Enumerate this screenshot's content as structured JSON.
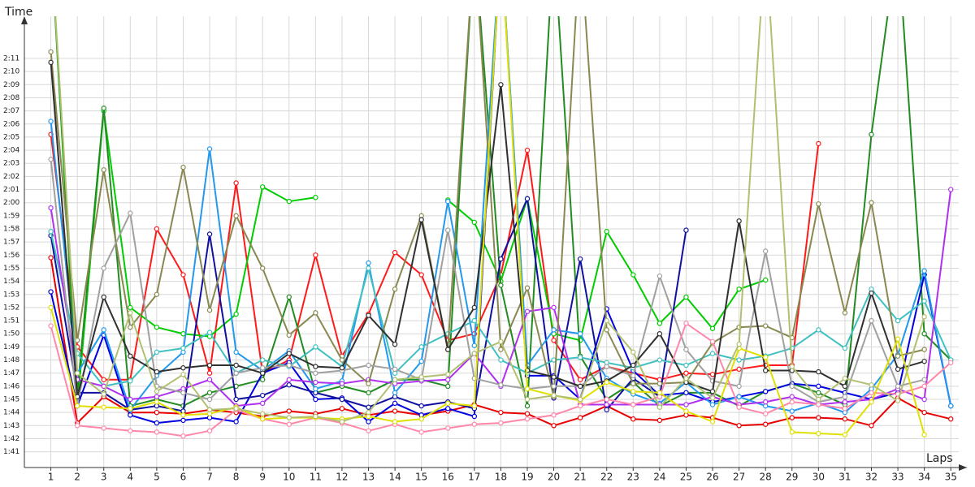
{
  "chart_data": {
    "type": "line",
    "y_label": "Time",
    "x_label": "Laps",
    "x": [
      1,
      2,
      3,
      4,
      5,
      6,
      7,
      8,
      9,
      10,
      11,
      12,
      13,
      14,
      15,
      16,
      17,
      18,
      19,
      20,
      21,
      22,
      23,
      24,
      25,
      26,
      27,
      28,
      29,
      30,
      31,
      32,
      33,
      34,
      35
    ],
    "xlim": [
      0,
      35.3
    ],
    "xticks": [
      1,
      2,
      3,
      4,
      5,
      6,
      7,
      8,
      9,
      10,
      11,
      12,
      13,
      14,
      15,
      16,
      17,
      18,
      19,
      20,
      21,
      22,
      23,
      24,
      25,
      26,
      27,
      28,
      29,
      30,
      31,
      32,
      33,
      34,
      35
    ],
    "ylim": [
      99.8,
      133.6
    ],
    "yticks": [
      {
        "value": 101,
        "label": "1:41"
      },
      {
        "value": 102,
        "label": "1:42"
      },
      {
        "value": 103,
        "label": "1:43"
      },
      {
        "value": 104,
        "label": "1:44"
      },
      {
        "value": 105,
        "label": "1:45"
      },
      {
        "value": 106,
        "label": "1:46"
      },
      {
        "value": 107,
        "label": "1:47"
      },
      {
        "value": 108,
        "label": "1:48"
      },
      {
        "value": 109,
        "label": "1:49"
      },
      {
        "value": 110,
        "label": "1:50"
      },
      {
        "value": 111,
        "label": "1:51"
      },
      {
        "value": 112,
        "label": "1:52"
      },
      {
        "value": 113,
        "label": "1:53"
      },
      {
        "value": 114,
        "label": "1:54"
      },
      {
        "value": 115,
        "label": "1:55"
      },
      {
        "value": 116,
        "label": "1:56"
      },
      {
        "value": 117,
        "label": "1:57"
      },
      {
        "value": 118,
        "label": "1:58"
      },
      {
        "value": 119,
        "label": "1:59"
      },
      {
        "value": 120,
        "label": "2:00"
      },
      {
        "value": 121,
        "label": "2:01"
      },
      {
        "value": 122,
        "label": "2:02"
      },
      {
        "value": 123,
        "label": "2:03"
      },
      {
        "value": 124,
        "label": "2:04"
      },
      {
        "value": 125,
        "label": "2:05"
      },
      {
        "value": 126,
        "label": "2:06"
      },
      {
        "value": 127,
        "label": "2:07"
      },
      {
        "value": 128,
        "label": "2:08"
      },
      {
        "value": 129,
        "label": "2:09"
      },
      {
        "value": 130,
        "label": "2:10"
      },
      {
        "value": 131,
        "label": "2:11"
      }
    ],
    "grid": true,
    "series": [
      {
        "color": "#e80000",
        "values": [
          115.8,
          103.2,
          105.2,
          104,
          104,
          103.9,
          104.2,
          104,
          103.7,
          104.1,
          103.9,
          104.3,
          103.8,
          104.1,
          103.8,
          104.1,
          104.6,
          104,
          103.9,
          103,
          103.6,
          104.5,
          103.5,
          103.4,
          103.8,
          103.6,
          103,
          103.1,
          103.6,
          103.6,
          103.5,
          103,
          105.1,
          104,
          103.5
        ]
      },
      {
        "color": "#ff1a1a",
        "values": [
          125.2,
          109,
          106.5,
          106.5,
          118,
          114.5,
          107,
          121.5,
          107,
          108,
          116,
          108.3,
          111.5,
          116.2,
          114.5,
          109.5,
          110,
          114.5,
          124,
          109.5,
          106.5,
          107.5,
          107,
          106.5,
          107,
          106.9,
          107.3,
          107.6,
          107.6,
          124.5,
          null,
          null,
          null,
          null,
          null
        ]
      },
      {
        "color": "#00cc00",
        "values": [
          140,
          104.5,
          127,
          112,
          110.5,
          110,
          109.8,
          111.5,
          121.2,
          120.1,
          120.4,
          null,
          null,
          null,
          null,
          120.2,
          118.5,
          114,
          120.3,
          110,
          109.5,
          117.8,
          114.5,
          110.8,
          112.8,
          110.4,
          113.4,
          114.1,
          null,
          null,
          null,
          null,
          null,
          null,
          null
        ]
      },
      {
        "color": "#228b22",
        "values": [
          140,
          105.5,
          127.2,
          104.5,
          105,
          104.5,
          105.5,
          106,
          106.5,
          112.8,
          105.5,
          106,
          105.5,
          106.5,
          106.5,
          106,
          140,
          113.7,
          104.5,
          140,
          108.3,
          105,
          106.3,
          104.5,
          105.5,
          105.5,
          104.5,
          105.6,
          106.2,
          105.5,
          104.6,
          125.2,
          140,
          110,
          108
        ]
      },
      {
        "color": "#0000e0",
        "values": [
          113.2,
          104.5,
          109.9,
          103.8,
          103.2,
          103.4,
          103.6,
          103.3,
          107,
          107.8,
          105,
          105.1,
          103.3,
          104.7,
          103.8,
          104.3,
          103.7,
          140,
          106.8,
          106.8,
          105,
          111.9,
          107.2,
          105.3,
          105.5,
          104.8,
          105.2,
          105.6,
          106.2,
          106,
          105.5,
          105,
          105.5,
          114.5,
          104.5
        ]
      },
      {
        "color": "#1010a0",
        "values": [
          117.5,
          105.5,
          105.5,
          104.2,
          104.5,
          104.1,
          117.6,
          105,
          105.3,
          106.1,
          105.5,
          105,
          104.4,
          105.2,
          104.5,
          104.8,
          104.3,
          115.7,
          120.3,
          105.1,
          115.7,
          104.2,
          106.6,
          105.2,
          117.9,
          null,
          null,
          null,
          null,
          null,
          null,
          null,
          null,
          null,
          null
        ]
      },
      {
        "color": "#2299ee",
        "values": [
          126.2,
          107,
          110.3,
          104.2,
          106.8,
          108.6,
          124.1,
          108.6,
          107.2,
          108.7,
          105.8,
          106.4,
          115.4,
          105.5,
          107.9,
          120.1,
          109.1,
          140,
          107.6,
          110.3,
          110,
          106.6,
          105.4,
          104.7,
          106.3,
          104.6,
          105.2,
          104.5,
          104.1,
          104.7,
          104,
          105.8,
          108.4,
          114.8,
          104.5
        ]
      },
      {
        "color": "#40c0c0",
        "values": [
          117.8,
          108.5,
          106,
          106.4,
          108.6,
          108.9,
          110.1,
          107,
          108,
          107.5,
          109,
          107.5,
          115,
          107,
          109,
          110,
          111,
          108,
          107,
          108,
          108.2,
          107.8,
          107.4,
          108,
          107.6,
          108.5,
          108,
          108.3,
          108.9,
          110.3,
          108.9,
          113.4,
          111,
          112.5,
          108
        ]
      },
      {
        "color": "#b030f0",
        "values": [
          119.6,
          106.5,
          106,
          105,
          105.2,
          105.8,
          106.5,
          104.5,
          104.7,
          106.5,
          106.3,
          106.2,
          106.5,
          106.2,
          106.4,
          106.5,
          108.5,
          106,
          111.7,
          112,
          104.6,
          104.6,
          104.6,
          104.6,
          104.6,
          105.2,
          104.6,
          104.8,
          105.2,
          104.6,
          104.8,
          105,
          105.8,
          105,
          121
        ]
      },
      {
        "color": "#888850",
        "values": [
          131.5,
          109.5,
          122.5,
          110.5,
          113,
          122.7,
          111.8,
          119,
          115,
          109.9,
          111.6,
          108,
          106.2,
          113.4,
          119,
          108.8,
          140,
          108.8,
          113.5,
          105.2,
          140,
          110.3,
          106.2,
          106.2,
          106.3,
          109.3,
          110.5,
          110.6,
          109.7,
          119.9,
          111.6,
          120,
          108.3,
          108.8,
          null
        ]
      },
      {
        "color": "#a0a0a0",
        "values": [
          123.3,
          104.5,
          115,
          119.2,
          106,
          105.5,
          105,
          107,
          107.4,
          107.6,
          107,
          107.2,
          107.6,
          107.3,
          106.5,
          117.9,
          106.6,
          106.1,
          105.8,
          106,
          106,
          107.5,
          106.8,
          114.4,
          108.8,
          106.4,
          106,
          116.3,
          106,
          104.8,
          105.2,
          111,
          106,
          106.5,
          null
        ]
      },
      {
        "color": "#303030",
        "values": [
          130.7,
          105.2,
          112.8,
          108.3,
          107.1,
          107.4,
          107.6,
          107.6,
          107,
          108.5,
          107.5,
          107.4,
          111.4,
          109.2,
          118.7,
          108.8,
          112,
          129,
          107.2,
          106.7,
          106,
          106.4,
          107.6,
          110,
          106.3,
          105.6,
          118.6,
          107.2,
          107.2,
          107.1,
          106,
          113.1,
          107.3,
          107.9,
          null
        ]
      },
      {
        "color": "#ff88aa",
        "values": [
          110.6,
          103,
          102.8,
          102.6,
          102.5,
          102.2,
          102.6,
          104.2,
          103.5,
          103.1,
          103.6,
          103.2,
          102.6,
          103.1,
          102.5,
          102.8,
          103.1,
          103.2,
          103.5,
          103.8,
          104.5,
          105,
          104.6,
          105.2,
          110.8,
          109.4,
          104.4,
          103.9,
          104.8,
          104.6,
          104.3,
          105.5,
          105.4,
          106,
          107.8
        ]
      },
      {
        "color": "#e0e000",
        "values": [
          112,
          104.5,
          104.4,
          104.3,
          104.8,
          103.8,
          103.9,
          104.4,
          103.5,
          103.6,
          103.6,
          103.5,
          103.7,
          103.3,
          103.5,
          104.7,
          104.5,
          140,
          105.8,
          105.3,
          104.9,
          106.3,
          105.6,
          105.5,
          104.1,
          103.3,
          108.9,
          108.2,
          102.5,
          102.4,
          102.3,
          104.8,
          109.6,
          102.3,
          null
        ]
      },
      {
        "color": "#b0c070",
        "values": [
          140,
          107,
          105.4,
          111.6,
          105.6,
          106.9,
          104.2,
          104.3,
          103.9,
          103.6,
          103.7,
          103.3,
          104,
          106.5,
          106.7,
          106.9,
          108.5,
          109.4,
          105,
          105.3,
          105,
          111,
          108.6,
          104.4,
          106.6,
          105.1,
          109.2,
          140,
          107.5,
          105,
          106.6,
          106.1,
          104.9,
          111.3,
          null
        ]
      }
    ]
  }
}
